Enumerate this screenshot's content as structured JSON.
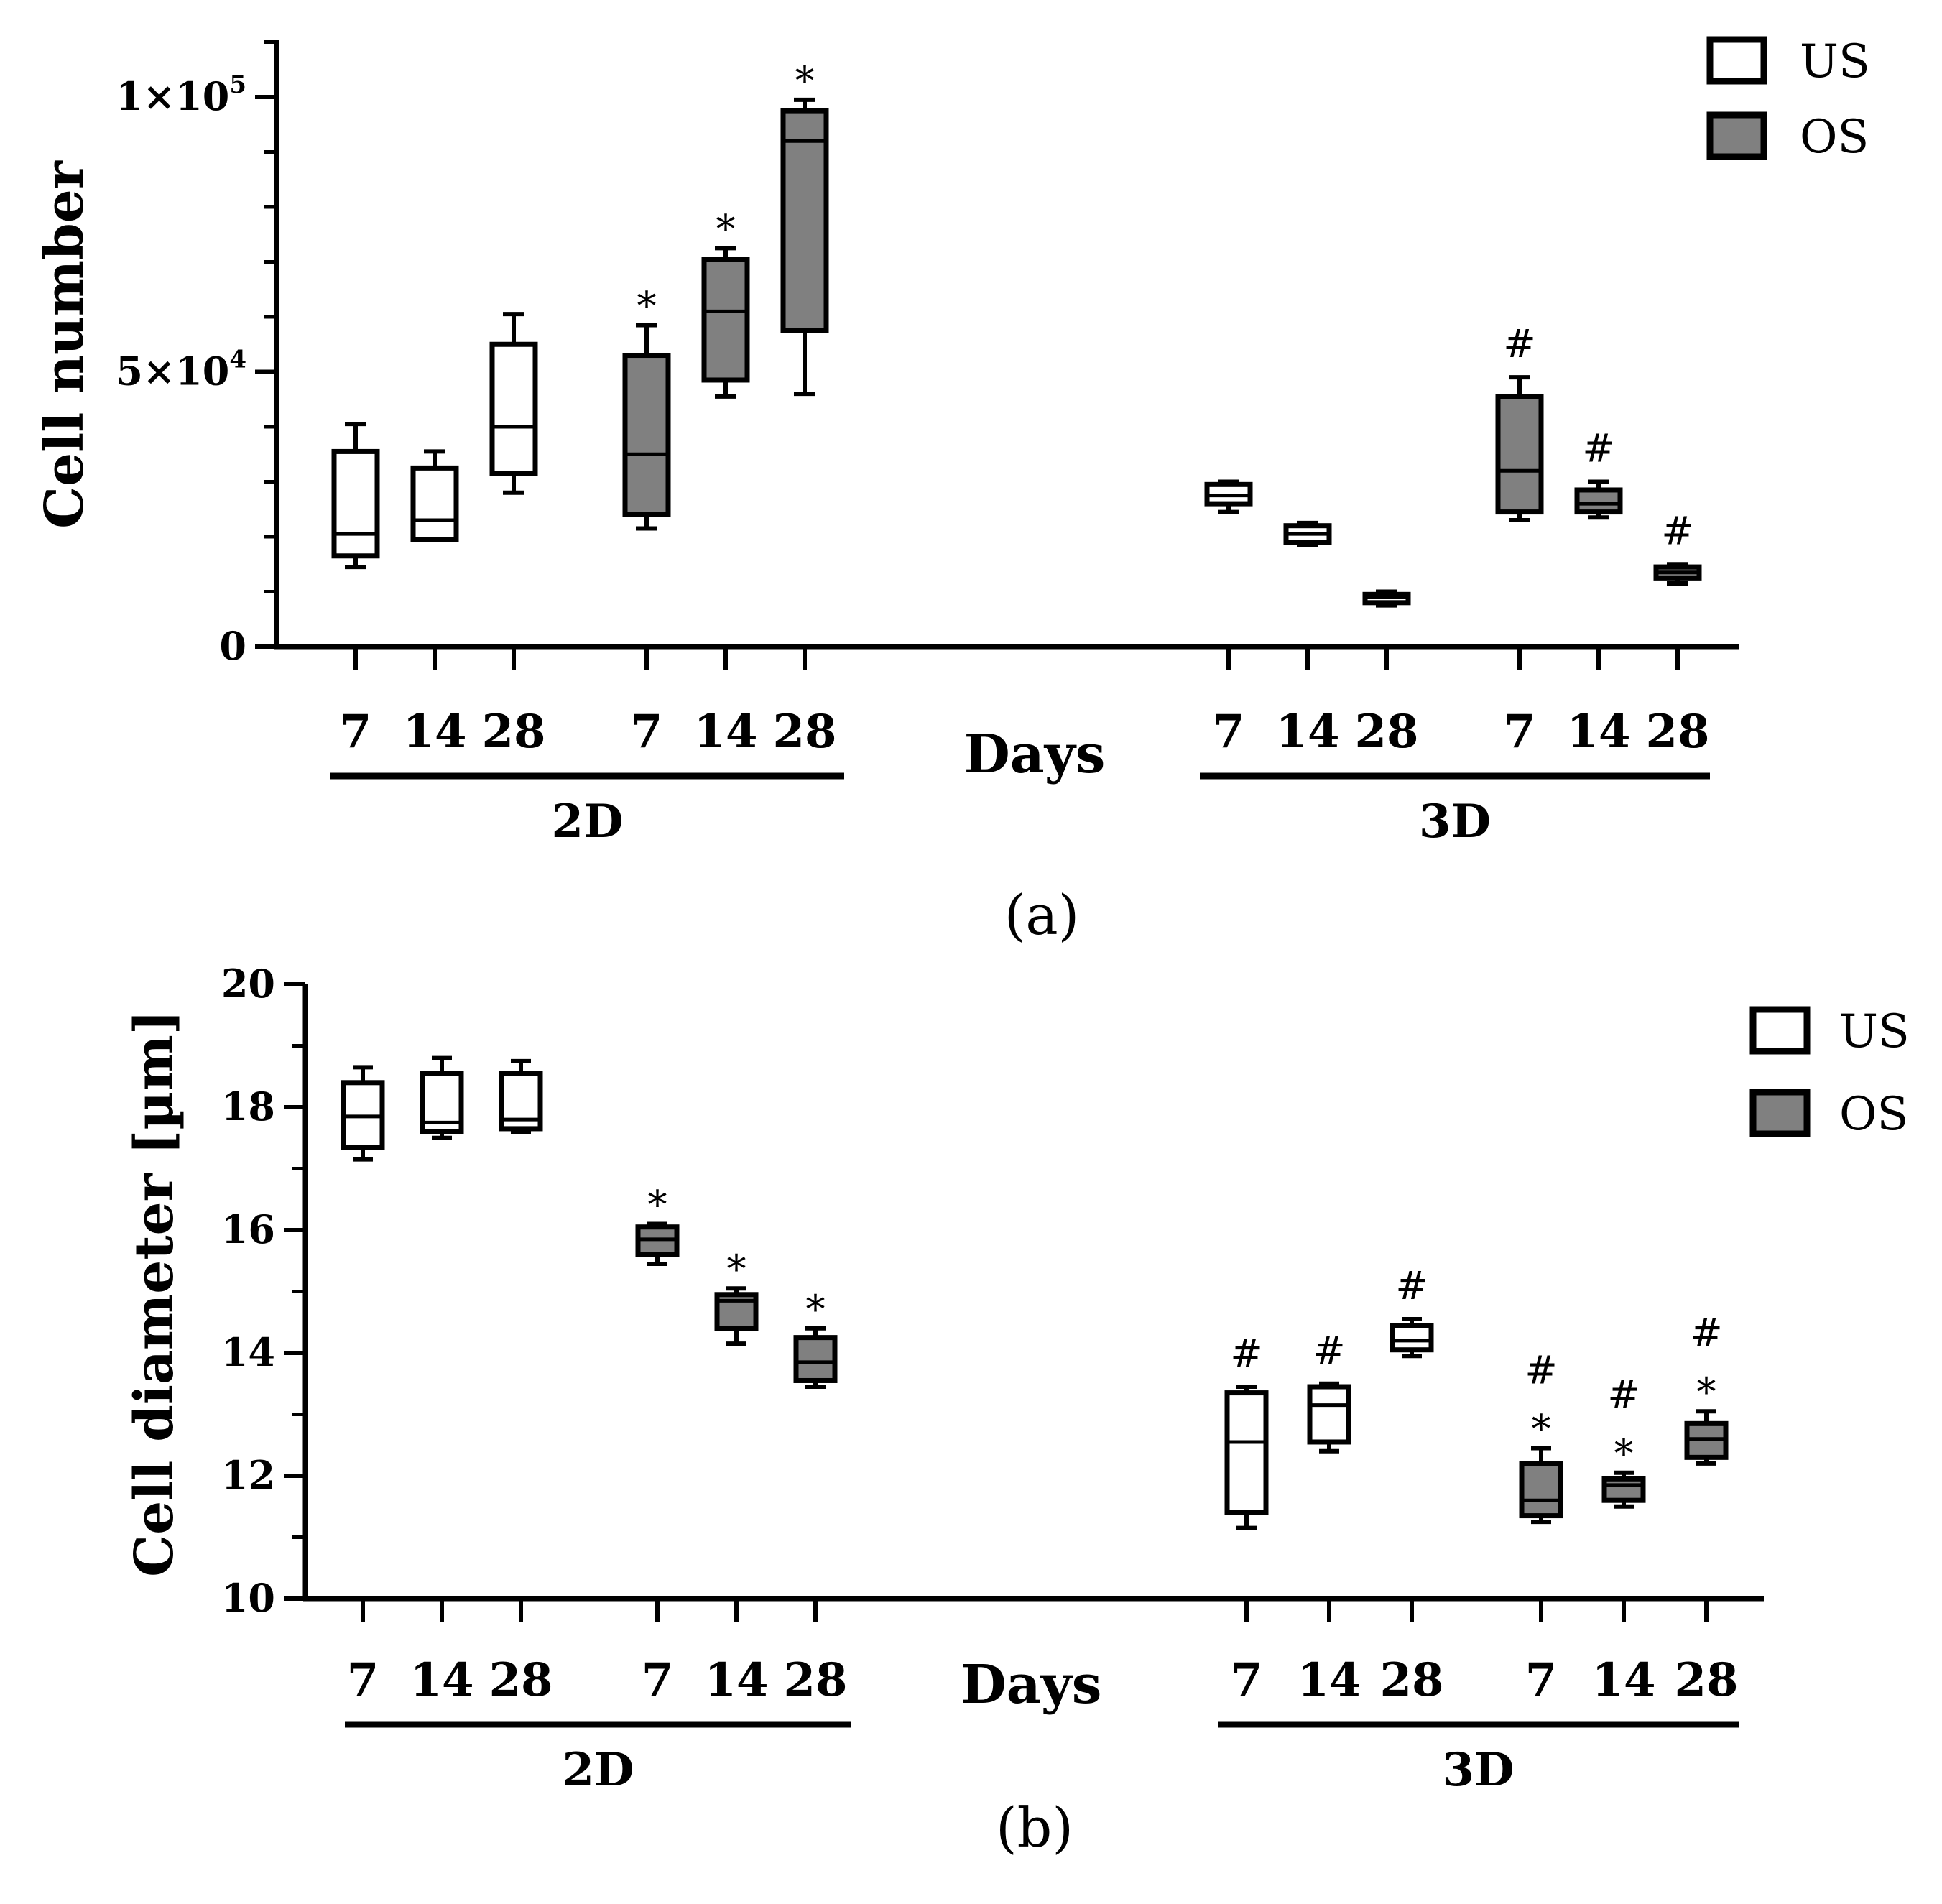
{
  "chart_data": [
    {
      "type": "box",
      "panel_label": "(a)",
      "ylabel": "Cell number",
      "xlabel": "Days",
      "ylim": [
        0,
        110000
      ],
      "yticks": [
        {
          "value": 0,
          "base": "0",
          "exp": ""
        },
        {
          "value": 50000,
          "base": "5×10",
          "exp": "4"
        },
        {
          "value": 100000,
          "base": "1×10",
          "exp": "5"
        }
      ],
      "groups": [
        "2D",
        "3D"
      ],
      "legend": [
        {
          "label": "US",
          "color": "#ffffff"
        },
        {
          "label": "OS",
          "color": "#808080"
        }
      ],
      "boxes": [
        {
          "group": "2D",
          "series": "US",
          "day": "7",
          "min": 14500,
          "q1": 16500,
          "median": 20500,
          "q3": 35500,
          "max": 40500,
          "marks": []
        },
        {
          "group": "2D",
          "series": "US",
          "day": "14",
          "min": 19500,
          "q1": 19500,
          "median": 23000,
          "q3": 32500,
          "max": 35500,
          "marks": []
        },
        {
          "group": "2D",
          "series": "US",
          "day": "28",
          "min": 28000,
          "q1": 31500,
          "median": 40000,
          "q3": 55000,
          "max": 60500,
          "marks": []
        },
        {
          "group": "2D",
          "series": "OS",
          "day": "7",
          "min": 21500,
          "q1": 24000,
          "median": 35000,
          "q3": 53000,
          "max": 58500,
          "marks": [
            "*"
          ]
        },
        {
          "group": "2D",
          "series": "OS",
          "day": "14",
          "min": 45500,
          "q1": 48500,
          "median": 61000,
          "q3": 70500,
          "max": 72500,
          "marks": [
            "*"
          ]
        },
        {
          "group": "2D",
          "series": "OS",
          "day": "28",
          "min": 46000,
          "q1": 57500,
          "median": 92000,
          "q3": 97500,
          "max": 99500,
          "marks": [
            "*"
          ]
        },
        {
          "group": "3D",
          "series": "US",
          "day": "7",
          "min": 24500,
          "q1": 26000,
          "median": 27500,
          "q3": 29500,
          "max": 30000,
          "marks": []
        },
        {
          "group": "3D",
          "series": "US",
          "day": "14",
          "min": 18500,
          "q1": 19000,
          "median": 20500,
          "q3": 22000,
          "max": 22500,
          "marks": []
        },
        {
          "group": "3D",
          "series": "US",
          "day": "28",
          "min": 7500,
          "q1": 8000,
          "median": 9000,
          "q3": 9500,
          "max": 10000,
          "marks": []
        },
        {
          "group": "3D",
          "series": "OS",
          "day": "7",
          "min": 23000,
          "q1": 24500,
          "median": 32000,
          "q3": 45500,
          "max": 49000,
          "marks": [
            "#"
          ]
        },
        {
          "group": "3D",
          "series": "OS",
          "day": "14",
          "min": 23500,
          "q1": 24500,
          "median": 26000,
          "q3": 28500,
          "max": 30000,
          "marks": [
            "#"
          ]
        },
        {
          "group": "3D",
          "series": "OS",
          "day": "28",
          "min": 11500,
          "q1": 12500,
          "median": 13500,
          "q3": 14500,
          "max": 15000,
          "marks": [
            "#"
          ]
        }
      ]
    },
    {
      "type": "box",
      "panel_label": "(b)",
      "ylabel": "Cell diameter [µm]",
      "xlabel": "Days",
      "ylim": [
        10,
        20
      ],
      "yticks": [
        {
          "value": 10,
          "base": "10",
          "exp": ""
        },
        {
          "value": 12,
          "base": "12",
          "exp": ""
        },
        {
          "value": 14,
          "base": "14",
          "exp": ""
        },
        {
          "value": 16,
          "base": "16",
          "exp": ""
        },
        {
          "value": 18,
          "base": "18",
          "exp": ""
        },
        {
          "value": 20,
          "base": "20",
          "exp": ""
        }
      ],
      "groups": [
        "2D",
        "3D"
      ],
      "legend": [
        {
          "label": "US",
          "color": "#ffffff"
        },
        {
          "label": "OS",
          "color": "#808080"
        }
      ],
      "boxes": [
        {
          "group": "2D",
          "series": "US",
          "day": "7",
          "min": 17.15,
          "q1": 17.35,
          "median": 17.85,
          "q3": 18.4,
          "max": 18.65,
          "marks": []
        },
        {
          "group": "2D",
          "series": "US",
          "day": "14",
          "min": 17.5,
          "q1": 17.6,
          "median": 17.75,
          "q3": 18.55,
          "max": 18.8,
          "marks": []
        },
        {
          "group": "2D",
          "series": "US",
          "day": "28",
          "min": 17.6,
          "q1": 17.65,
          "median": 17.8,
          "q3": 18.55,
          "max": 18.75,
          "marks": []
        },
        {
          "group": "2D",
          "series": "OS",
          "day": "7",
          "min": 15.45,
          "q1": 15.6,
          "median": 15.85,
          "q3": 16.05,
          "max": 16.1,
          "marks": [
            "*"
          ]
        },
        {
          "group": "2D",
          "series": "OS",
          "day": "14",
          "min": 14.15,
          "q1": 14.4,
          "median": 14.85,
          "q3": 14.95,
          "max": 15.05,
          "marks": [
            "*"
          ]
        },
        {
          "group": "2D",
          "series": "OS",
          "day": "28",
          "min": 13.45,
          "q1": 13.55,
          "median": 13.85,
          "q3": 14.25,
          "max": 14.4,
          "marks": [
            "*"
          ]
        },
        {
          "group": "3D",
          "series": "US",
          "day": "7",
          "min": 11.15,
          "q1": 11.4,
          "median": 12.55,
          "q3": 13.35,
          "max": 13.45,
          "marks": [
            "#"
          ]
        },
        {
          "group": "3D",
          "series": "US",
          "day": "14",
          "min": 12.4,
          "q1": 12.55,
          "median": 13.15,
          "q3": 13.45,
          "max": 13.5,
          "marks": [
            "#"
          ]
        },
        {
          "group": "3D",
          "series": "US",
          "day": "28",
          "min": 13.95,
          "q1": 14.05,
          "median": 14.2,
          "q3": 14.45,
          "max": 14.55,
          "marks": [
            "#"
          ]
        },
        {
          "group": "3D",
          "series": "OS",
          "day": "7",
          "min": 11.25,
          "q1": 11.35,
          "median": 11.6,
          "q3": 12.2,
          "max": 12.45,
          "marks": [
            "#",
            "*"
          ]
        },
        {
          "group": "3D",
          "series": "OS",
          "day": "14",
          "min": 11.5,
          "q1": 11.6,
          "median": 11.85,
          "q3": 11.95,
          "max": 12.05,
          "marks": [
            "#",
            "*"
          ]
        },
        {
          "group": "3D",
          "series": "OS",
          "day": "28",
          "min": 12.2,
          "q1": 12.3,
          "median": 12.6,
          "q3": 12.85,
          "max": 13.05,
          "marks": [
            "#",
            "*"
          ]
        }
      ]
    }
  ]
}
